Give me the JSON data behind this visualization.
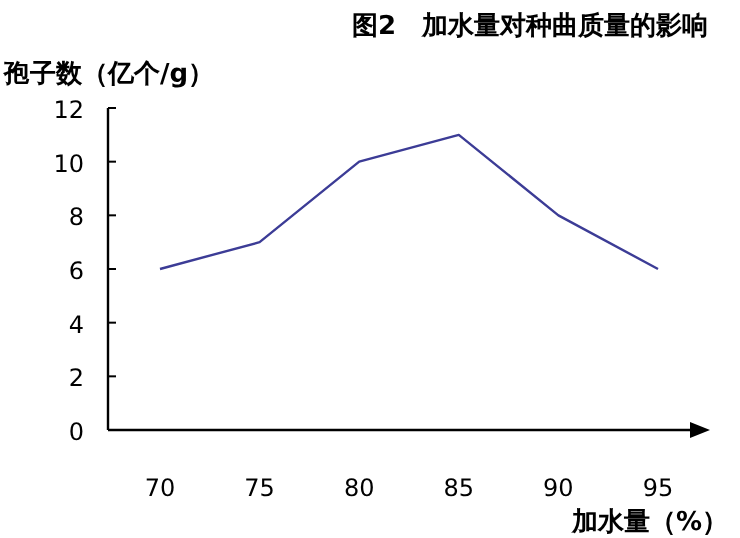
{
  "chart_data": {
    "type": "line",
    "title": "图2　加水量对种曲质量的影响",
    "ylabel": "孢子数（亿个/g）",
    "xlabel": "加水量（%）",
    "categories": [
      "70",
      "75",
      "80",
      "85",
      "90",
      "95"
    ],
    "values": [
      6,
      7,
      10,
      11,
      8,
      6
    ],
    "color": "#3c3c96",
    "ylim": [
      0,
      12
    ],
    "yticks": [
      0,
      2,
      4,
      6,
      8,
      10,
      12
    ],
    "grid": false,
    "marker": "none",
    "line_style": "solid"
  }
}
